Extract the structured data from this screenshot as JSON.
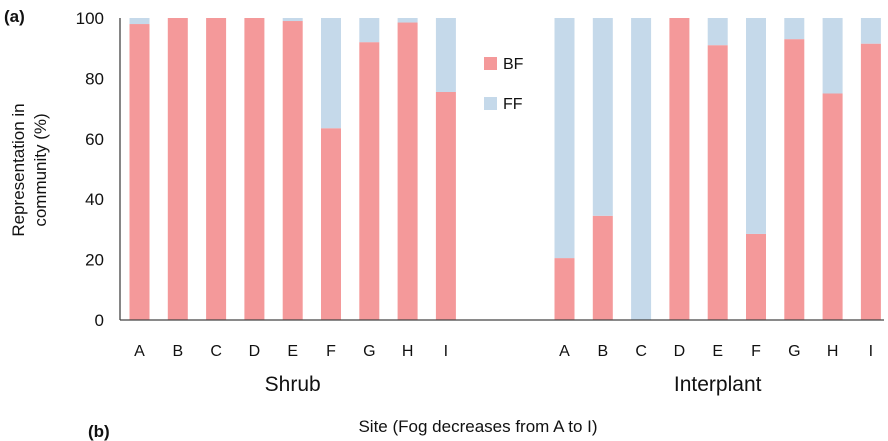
{
  "panel_a_label": "(a)",
  "panel_b_label": "(b)",
  "chart_data": {
    "type": "bar",
    "stacked": true,
    "ylabel_line1": "Representation in",
    "ylabel_line2": "community (%)",
    "xlabel": "Site (Fog decreases from A to I)",
    "ylim": [
      0,
      100
    ],
    "yticks": [
      0,
      20,
      40,
      60,
      80,
      100
    ],
    "grid": false,
    "legend_position": "inside-top-center",
    "colors": {
      "BF": "#F4999A",
      "FF": "#C5D9EA"
    },
    "groups": [
      {
        "name": "Shrub",
        "categories": [
          "A",
          "B",
          "C",
          "D",
          "E",
          "F",
          "G",
          "H",
          "I"
        ],
        "series": [
          {
            "name": "BF",
            "values": [
              98,
              100,
              100,
              100,
              99,
              63.5,
              92,
              98.5,
              75.5
            ]
          },
          {
            "name": "FF",
            "values": [
              2,
              0,
              0,
              0,
              1,
              36.5,
              8,
              1.5,
              24.5
            ]
          }
        ]
      },
      {
        "name": "Interplant",
        "categories": [
          "A",
          "B",
          "C",
          "D",
          "E",
          "F",
          "G",
          "H",
          "I"
        ],
        "series": [
          {
            "name": "BF",
            "values": [
              20.5,
              34.5,
              0,
              100,
              91,
              28.5,
              93,
              75,
              91.5
            ]
          },
          {
            "name": "FF",
            "values": [
              79.5,
              65.5,
              100,
              0,
              9,
              71.5,
              7,
              25,
              8.5
            ]
          }
        ]
      }
    ]
  }
}
